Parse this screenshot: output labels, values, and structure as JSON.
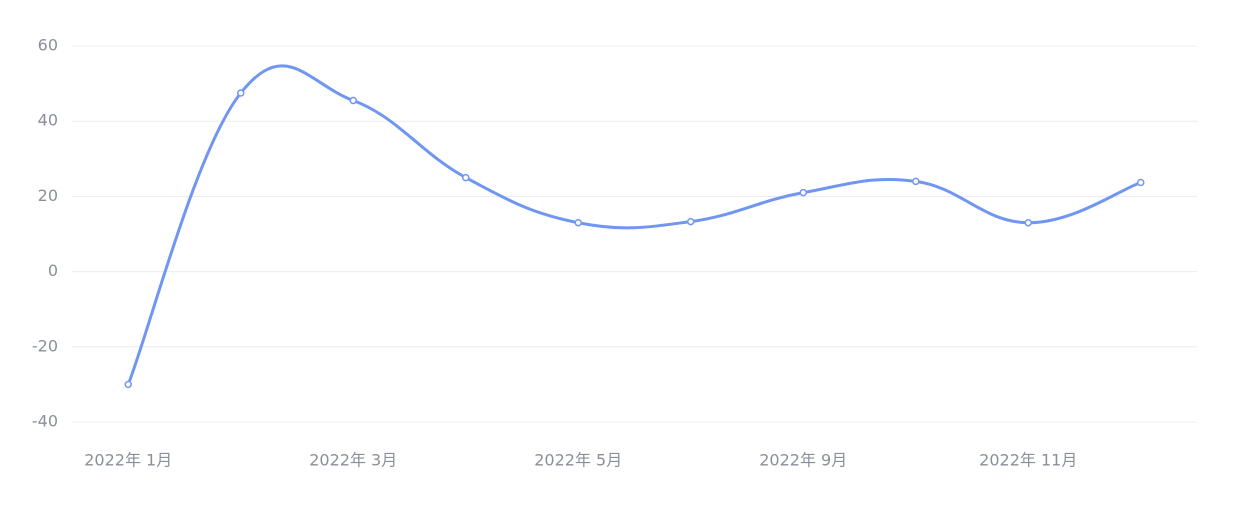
{
  "chart_data": {
    "type": "line",
    "categories": [
      "2022年 1月",
      null,
      "2022年 3月",
      null,
      "2022年 5月",
      null,
      "2022年 9月",
      null,
      "2022年 11月",
      null
    ],
    "values": [
      -30,
      47.5,
      45.5,
      25,
      13,
      13.3,
      21,
      24,
      13,
      23.7
    ],
    "color": "#7196f2",
    "smooth": true,
    "ylim": [
      -40,
      60
    ],
    "yticks": [
      -40,
      -20,
      0,
      20,
      40,
      60
    ],
    "grid": true
  }
}
